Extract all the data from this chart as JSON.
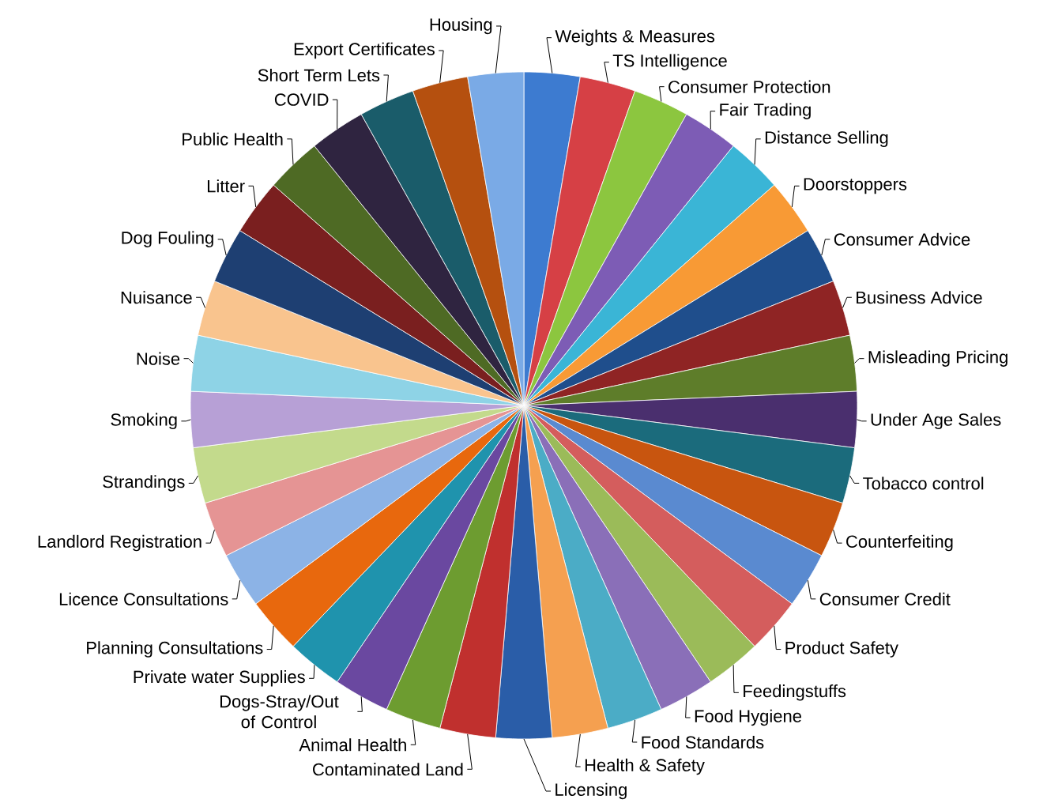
{
  "chart_data": {
    "type": "pie",
    "categories": [
      "Weights & Measures",
      "TS Intelligence",
      "Consumer Protection",
      "Fair Trading",
      "Distance Selling",
      "Doorstoppers",
      "Consumer Advice",
      "Business Advice",
      "Misleading Pricing",
      "Under Age Sales",
      "Tobacco control",
      "Counterfeiting",
      "Consumer Credit",
      "Product Safety",
      "Feedingstuffs",
      "Food Hygiene",
      "Food Standards",
      "Health & Safety",
      "Licensing",
      "Contaminated Land",
      "Animal Health",
      "Dogs-Stray/Out of Control",
      "Private water Supplies",
      "Planning Consultations",
      "Licence Consultations",
      "Landlord Registration",
      "Strandings",
      "Smoking",
      "Noise",
      "Nuisance",
      "Dog Fouling",
      "Litter",
      "Public Health",
      "COVID",
      "Short Term Lets",
      "Export Certificates",
      "Housing"
    ],
    "values": [
      2.7027,
      2.7027,
      2.7027,
      2.7027,
      2.7027,
      2.7027,
      2.7027,
      2.7027,
      2.7027,
      2.7027,
      2.7027,
      2.7027,
      2.7027,
      2.7027,
      2.7027,
      2.7027,
      2.7027,
      2.7027,
      2.7027,
      2.7027,
      2.7027,
      2.7027,
      2.7027,
      2.7027,
      2.7027,
      2.7027,
      2.7027,
      2.7027,
      2.7027,
      2.7027,
      2.7027,
      2.7027,
      2.7027,
      2.7027,
      2.7027,
      2.7027,
      2.7027
    ],
    "colors": [
      "#3d7bd0",
      "#d64045",
      "#8cc63f",
      "#7d5cb5",
      "#3ab5d6",
      "#f89a35",
      "#1f4e8c",
      "#8f2424",
      "#5e7d2a",
      "#4a2f6e",
      "#1b6b7c",
      "#c8550f",
      "#5a8ad0",
      "#d45d5d",
      "#9bbb59",
      "#8a6fb8",
      "#4bacc6",
      "#f5a050",
      "#2a5da8",
      "#c0302e",
      "#6d9c30",
      "#6a48a0",
      "#1f93ad",
      "#e8680d",
      "#8cb3e6",
      "#e59494",
      "#c3da8c",
      "#b7a0d6",
      "#8ed3e6",
      "#f9c48e",
      "#1e3f72",
      "#7a1f1f",
      "#4e6a24",
      "#2f2440",
      "#1a5c6a",
      "#b5500f",
      "#7aaae6"
    ]
  }
}
